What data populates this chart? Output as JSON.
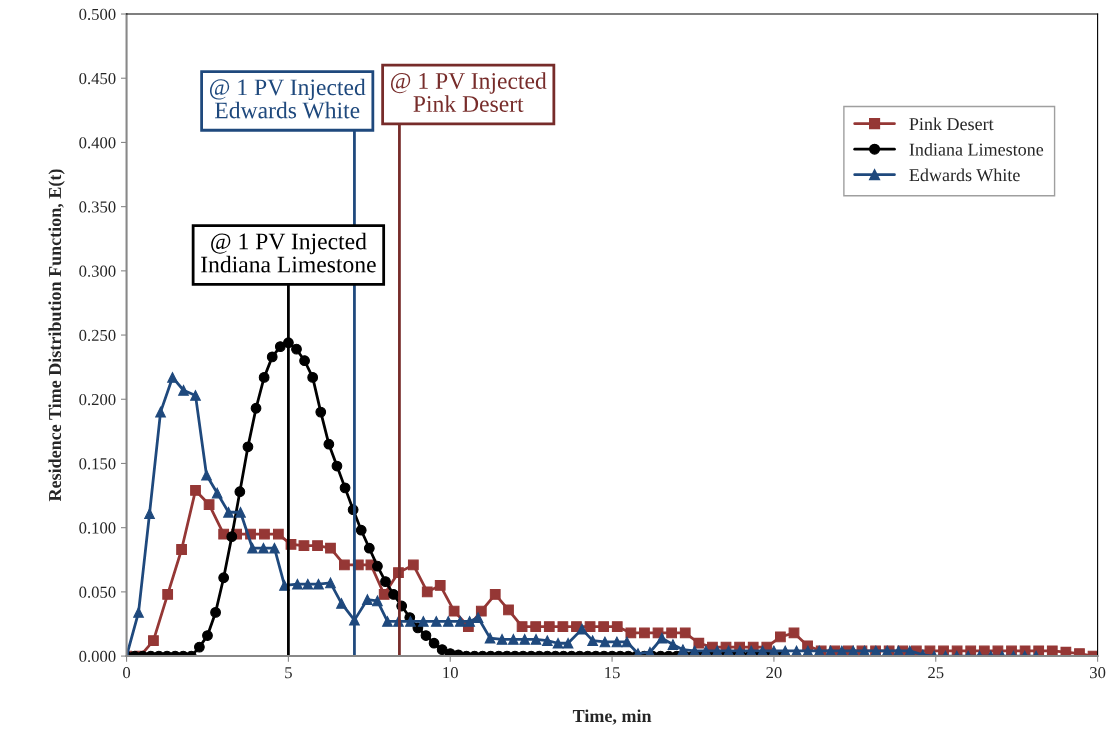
{
  "chart_data": {
    "type": "line",
    "xlabel": "Time, min",
    "ylabel": "Residence Time Distribution Function, E(t)",
    "xlim": [
      0,
      30
    ],
    "xticks": [
      0,
      5,
      10,
      15,
      20,
      25,
      30
    ],
    "ylim": [
      0,
      0.5
    ],
    "yticks": [
      {
        "value": 0,
        "label": "0.000"
      },
      {
        "value": 0.05,
        "label": "0.050"
      },
      {
        "value": 0.1,
        "label": "0.100"
      },
      {
        "value": 0.15,
        "label": "0.150"
      },
      {
        "value": 0.2,
        "label": "0.200"
      },
      {
        "value": 0.25,
        "label": "0.250"
      },
      {
        "value": 0.3,
        "label": "0.300"
      },
      {
        "value": 0.35,
        "label": "0.350"
      },
      {
        "value": 0.4,
        "label": "0.400"
      },
      {
        "value": 0.45,
        "label": "0.450"
      },
      {
        "value": 0.5,
        "label": "0.500"
      }
    ],
    "grid": false,
    "legend": "top right",
    "series": [
      {
        "name": "Pink Desert",
        "color": "#953735",
        "marker": "square",
        "x": [
          0,
          0.42,
          0.83,
          1.27,
          1.7,
          2.13,
          2.55,
          3.0,
          3.4,
          3.83,
          4.26,
          4.69,
          5.08,
          5.48,
          5.9,
          6.3,
          6.73,
          7.16,
          7.55,
          7.96,
          8.4,
          8.86,
          9.29,
          9.69,
          10.12,
          10.56,
          10.96,
          11.39,
          11.8,
          12.22,
          12.64,
          13.06,
          13.48,
          13.9,
          14.32,
          14.74,
          15.16,
          15.58,
          16.0,
          16.42,
          16.84,
          17.26,
          17.68,
          18.1,
          18.52,
          18.94,
          19.36,
          19.78,
          20.2,
          20.62,
          21.04,
          21.46,
          21.88,
          22.3,
          22.72,
          23.14,
          23.56,
          23.98,
          24.4,
          24.82,
          25.24,
          25.66,
          26.08,
          26.5,
          26.92,
          27.34,
          27.76,
          28.18,
          28.6,
          29.02,
          29.44,
          29.86
        ],
        "values": [
          0,
          0,
          0.012,
          0.048,
          0.083,
          0.129,
          0.118,
          0.095,
          0.095,
          0.095,
          0.095,
          0.095,
          0.087,
          0.086,
          0.086,
          0.084,
          0.071,
          0.071,
          0.071,
          0.048,
          0.065,
          0.071,
          0.05,
          0.055,
          0.035,
          0.023,
          0.035,
          0.048,
          0.036,
          0.023,
          0.023,
          0.023,
          0.023,
          0.023,
          0.023,
          0.023,
          0.023,
          0.018,
          0.018,
          0.018,
          0.018,
          0.018,
          0.01,
          0.007,
          0.007,
          0.007,
          0.007,
          0.007,
          0.015,
          0.018,
          0.008,
          0.004,
          0.004,
          0.004,
          0.004,
          0.004,
          0.004,
          0.004,
          0.004,
          0.004,
          0.004,
          0.004,
          0.004,
          0.004,
          0.004,
          0.004,
          0.004,
          0.004,
          0.004,
          0.003,
          0.002,
          0
        ]
      },
      {
        "name": "Indiana Limestone",
        "color": "#000000",
        "marker": "circle",
        "x": [
          0,
          0.25,
          0.5,
          0.75,
          1.0,
          1.25,
          1.5,
          1.75,
          2.0,
          2.25,
          2.5,
          2.75,
          3.0,
          3.25,
          3.5,
          3.75,
          4.0,
          4.25,
          4.5,
          4.75,
          5.0,
          5.25,
          5.5,
          5.75,
          6.0,
          6.25,
          6.5,
          6.75,
          7.0,
          7.25,
          7.5,
          7.75,
          8.0,
          8.25,
          8.5,
          8.75,
          9.0,
          9.25,
          9.5,
          9.75,
          10.0,
          10.25,
          10.5,
          10.75,
          11.0,
          11.25,
          11.5,
          11.75,
          12.0,
          12.25,
          12.5,
          12.75,
          13.0,
          13.25,
          13.5,
          13.75,
          14.0,
          14.25,
          14.5,
          14.75,
          15.0,
          15.25,
          15.5,
          15.75,
          16.0,
          16.25,
          16.5,
          16.75,
          17.0,
          17.25,
          17.5,
          17.75,
          18.0,
          18.25,
          18.5,
          18.75,
          19.0,
          19.25,
          19.5,
          19.75,
          20.0,
          20.25
        ],
        "values": [
          0,
          0,
          0,
          0,
          0,
          0,
          0,
          0,
          0,
          0.007,
          0.016,
          0.034,
          0.061,
          0.093,
          0.128,
          0.163,
          0.193,
          0.217,
          0.233,
          0.241,
          0.244,
          0.239,
          0.23,
          0.217,
          0.19,
          0.165,
          0.148,
          0.131,
          0.114,
          0.098,
          0.084,
          0.07,
          0.058,
          0.048,
          0.039,
          0.03,
          0.022,
          0.016,
          0.01,
          0.005,
          0.002,
          0.001,
          0,
          0,
          0,
          0,
          0,
          0,
          0,
          0,
          0,
          0,
          0,
          0,
          0,
          0,
          0,
          0,
          0,
          0,
          0,
          0,
          0,
          0,
          0,
          0,
          0,
          0,
          0,
          0,
          0,
          0,
          0,
          0,
          0,
          0,
          0,
          0,
          0,
          0,
          0,
          0
        ]
      },
      {
        "name": "Edwards White",
        "color": "#1f497d",
        "marker": "triangle",
        "x": [
          0,
          0.37,
          0.71,
          1.05,
          1.42,
          1.76,
          2.13,
          2.47,
          2.8,
          3.15,
          3.52,
          3.89,
          4.23,
          4.57,
          4.88,
          5.28,
          5.6,
          5.93,
          6.3,
          6.64,
          7.04,
          7.44,
          7.75,
          8.06,
          8.4,
          8.77,
          9.17,
          9.57,
          9.94,
          10.31,
          10.6,
          10.86,
          11.23,
          11.6,
          11.95,
          12.3,
          12.65,
          13.0,
          13.33,
          13.64,
          14.07,
          14.4,
          14.78,
          15.15,
          15.46,
          15.8,
          16.17,
          16.54,
          16.88,
          17.19,
          17.55,
          17.9,
          18.25,
          18.6,
          18.95,
          19.3,
          19.65,
          20.0,
          20.35,
          20.7,
          21.05,
          21.4,
          21.75,
          22.1,
          22.45,
          22.8,
          23.15,
          23.5,
          23.85,
          24.2,
          24.6,
          24.95,
          25.3,
          25.65,
          26.0,
          26.35,
          26.7,
          27.05,
          27.4,
          27.75,
          28.1
        ],
        "values": [
          0,
          0.034,
          0.111,
          0.19,
          0.217,
          0.207,
          0.203,
          0.141,
          0.127,
          0.112,
          0.112,
          0.084,
          0.084,
          0.084,
          0.055,
          0.056,
          0.056,
          0.056,
          0.057,
          0.041,
          0.028,
          0.044,
          0.043,
          0.027,
          0.027,
          0.027,
          0.027,
          0.027,
          0.027,
          0.027,
          0.027,
          0.03,
          0.014,
          0.013,
          0.013,
          0.013,
          0.013,
          0.012,
          0.01,
          0.01,
          0.021,
          0.012,
          0.011,
          0.011,
          0.011,
          0.002,
          0.003,
          0.014,
          0.009,
          0.005,
          0.004,
          0.004,
          0.004,
          0.004,
          0.004,
          0.004,
          0.004,
          0.004,
          0.004,
          0.004,
          0.004,
          0.004,
          0.004,
          0.004,
          0.004,
          0.004,
          0.004,
          0.004,
          0.004,
          0.004,
          0.001,
          0,
          0,
          0,
          0,
          0,
          0,
          0,
          0,
          0,
          0
        ]
      }
    ],
    "ref_lines": [
      {
        "axis": "x",
        "value": 5.0,
        "label": "@ 1 PV Injected\nIndiana Limestone",
        "color": "#000000"
      },
      {
        "axis": "x",
        "value": 7.04,
        "label": "@ 1 PV Injected\nEdwards White",
        "color": "#1f497d"
      },
      {
        "axis": "x",
        "value": 8.43,
        "label": "@ 1 PV Injected\nPink Desert",
        "color": "#772c2a"
      }
    ]
  }
}
